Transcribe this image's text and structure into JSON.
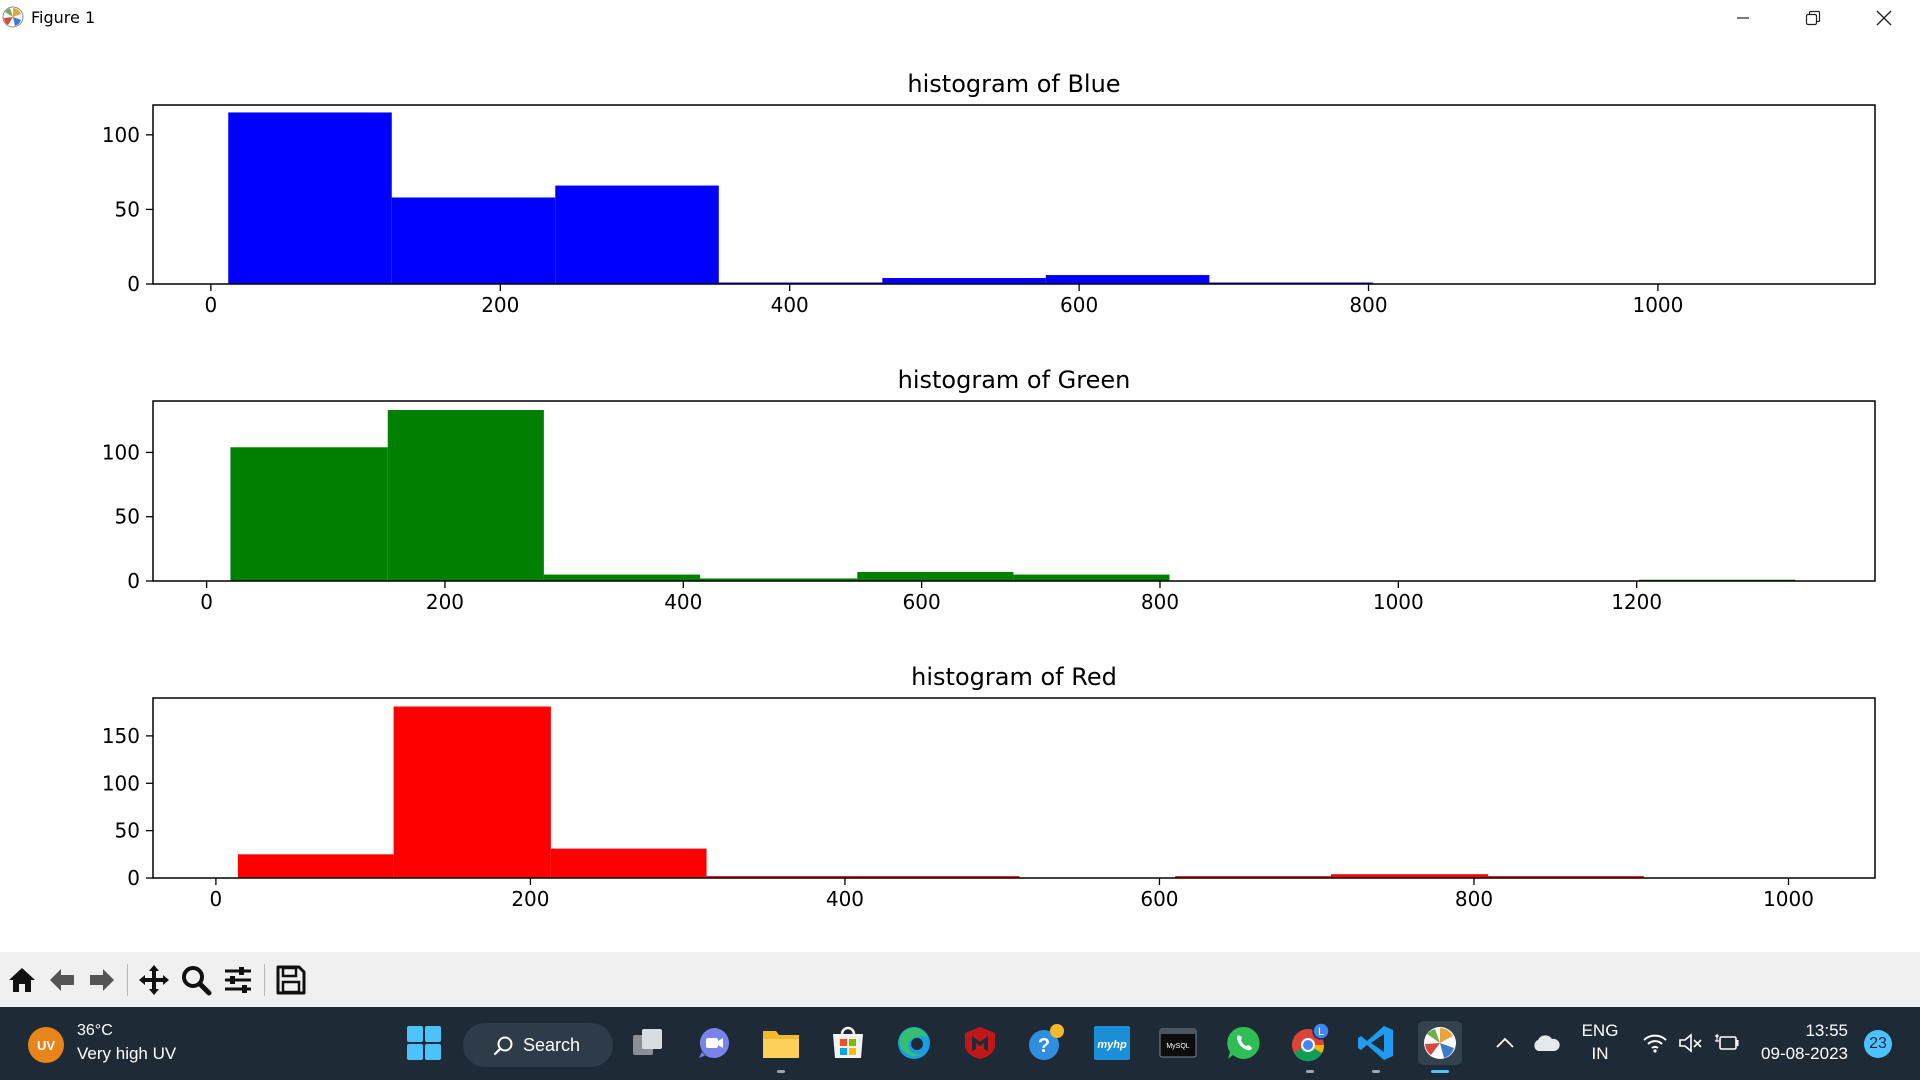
{
  "window": {
    "title": "Figure 1",
    "controls": {
      "minimize": "minimize-icon",
      "maximize": "restore-icon",
      "close": "close-icon"
    }
  },
  "chart_data": [
    {
      "type": "bar",
      "title": "histogram of Blue",
      "color": "#0000ff",
      "xlim": [
        -40,
        1150
      ],
      "ylim": [
        0,
        120
      ],
      "xticks": [
        0,
        200,
        400,
        600,
        800,
        1000
      ],
      "yticks": [
        0,
        50,
        100
      ],
      "bin_edges": [
        12,
        125,
        238,
        351,
        464,
        577,
        690,
        803
      ],
      "values": [
        115,
        58,
        66,
        1,
        4,
        6,
        1
      ]
    },
    {
      "type": "bar",
      "title": "histogram of Green",
      "color": "#008000",
      "xlim": [
        -45,
        1400
      ],
      "ylim": [
        0,
        140
      ],
      "xticks": [
        0,
        200,
        400,
        600,
        800,
        1000,
        1200
      ],
      "yticks": [
        0,
        50,
        100
      ],
      "bin_edges": [
        20,
        152,
        283,
        414,
        546,
        677,
        808,
        940,
        1071,
        1202,
        1333
      ],
      "values": [
        104,
        133,
        5,
        2,
        7,
        5,
        0,
        0,
        0,
        1
      ]
    },
    {
      "type": "bar",
      "title": "histogram of Red",
      "color": "#ff0000",
      "xlim": [
        -40,
        1055
      ],
      "ylim": [
        0,
        190
      ],
      "xticks": [
        0,
        200,
        400,
        600,
        800,
        1000
      ],
      "yticks": [
        0,
        50,
        100,
        150
      ],
      "bin_edges": [
        14,
        113,
        213,
        312,
        411,
        511,
        610,
        709,
        809,
        908
      ],
      "values": [
        25,
        181,
        31,
        2,
        2,
        0,
        2,
        4,
        2
      ]
    }
  ],
  "toolbar": {
    "buttons": [
      "home-icon",
      "back-arrow-icon",
      "forward-arrow-icon",
      "pan-move-icon",
      "zoom-magnifier-icon",
      "configure-subplots-icon",
      "save-floppy-icon"
    ]
  },
  "taskbar": {
    "weather": {
      "badge": "UV",
      "temperature": "36°C",
      "condition": "Very high UV"
    },
    "search_label": "Search",
    "apps": [
      "start-windows-icon",
      "search-icon",
      "task-view-icon",
      "teams-chat-icon",
      "file-explorer-icon",
      "microsoft-store-icon",
      "edge-browser-icon",
      "mcafee-icon",
      "help-icon",
      "myhp-icon",
      "mysql-icon",
      "whatsapp-icon",
      "chrome-icon",
      "vscode-icon",
      "matplotlib-figure-icon"
    ],
    "tray": {
      "language_top": "ENG",
      "language_bottom": "IN",
      "time": "13:55",
      "date": "09-08-2023",
      "notifications": "23"
    },
    "chrome_badge": "L",
    "myhp_label": "myhp",
    "mysql_label": "MySQL"
  }
}
